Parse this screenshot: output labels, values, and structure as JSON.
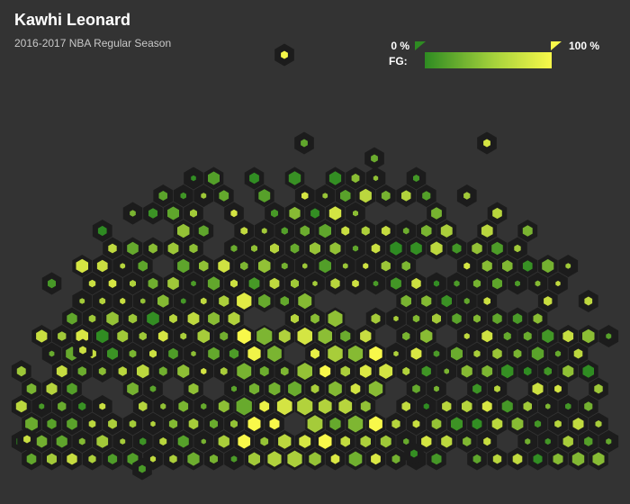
{
  "chart_data": {
    "type": "heatmap",
    "title": "Kawhi Leonard",
    "subtitle": "2016-2017 NBA Regular Season",
    "legend": {
      "label": "FG:",
      "min_label": "0 %",
      "max_label": "100 %",
      "placement": "top-right"
    },
    "colors": {
      "background": "#333333",
      "cell_outer": "#1c1c1c",
      "low": "#2e8b22",
      "high": "#f8f84a"
    },
    "grid": false
  }
}
